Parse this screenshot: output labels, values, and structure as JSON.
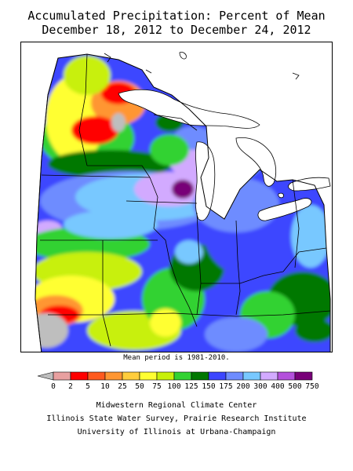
{
  "title": {
    "line1": "Accumulated Precipitation: Percent of Mean",
    "line2": "December 18, 2012 to December 24, 2012"
  },
  "mean_note": "Mean period is 1981-2010.",
  "legend": {
    "bins": [
      {
        "label": "0",
        "color": "#bebebe"
      },
      {
        "label": "2",
        "color": "#e8a0a0"
      },
      {
        "label": "5",
        "color": "#ff0000"
      },
      {
        "label": "10",
        "color": "#ff5a1e"
      },
      {
        "label": "25",
        "color": "#ff9632"
      },
      {
        "label": "50",
        "color": "#ffcd3c"
      },
      {
        "label": "75",
        "color": "#ffff32"
      },
      {
        "label": "100",
        "color": "#c8f00a"
      },
      {
        "label": "125",
        "color": "#32d232"
      },
      {
        "label": "150",
        "color": "#007800"
      },
      {
        "label": "175",
        "color": "#3c46ff"
      },
      {
        "label": "200",
        "color": "#6e8cff"
      },
      {
        "label": "300",
        "color": "#78c8ff"
      },
      {
        "label": "400",
        "color": "#d2aaff"
      },
      {
        "label": "500",
        "color": "#b450dc"
      },
      {
        "label": "750",
        "color": "#780078"
      }
    ]
  },
  "credits": {
    "line1": "Midwestern Regional Climate Center",
    "line2": "Illinois State Water Survey, Prairie Research Institute",
    "line3": "University of Illinois at Urbana-Champaign"
  },
  "map_colors": {
    "gray": "#bebebe",
    "red": "#ff0000",
    "orange": "#ff9632",
    "yellow": "#ffff32",
    "yellow_green": "#c8f00a",
    "green": "#32d232",
    "dark_green": "#007800",
    "blue": "#3c46ff",
    "medium_blue": "#6e8cff",
    "light_blue": "#78c8ff",
    "lavender": "#d2aaff",
    "purple": "#780078"
  }
}
